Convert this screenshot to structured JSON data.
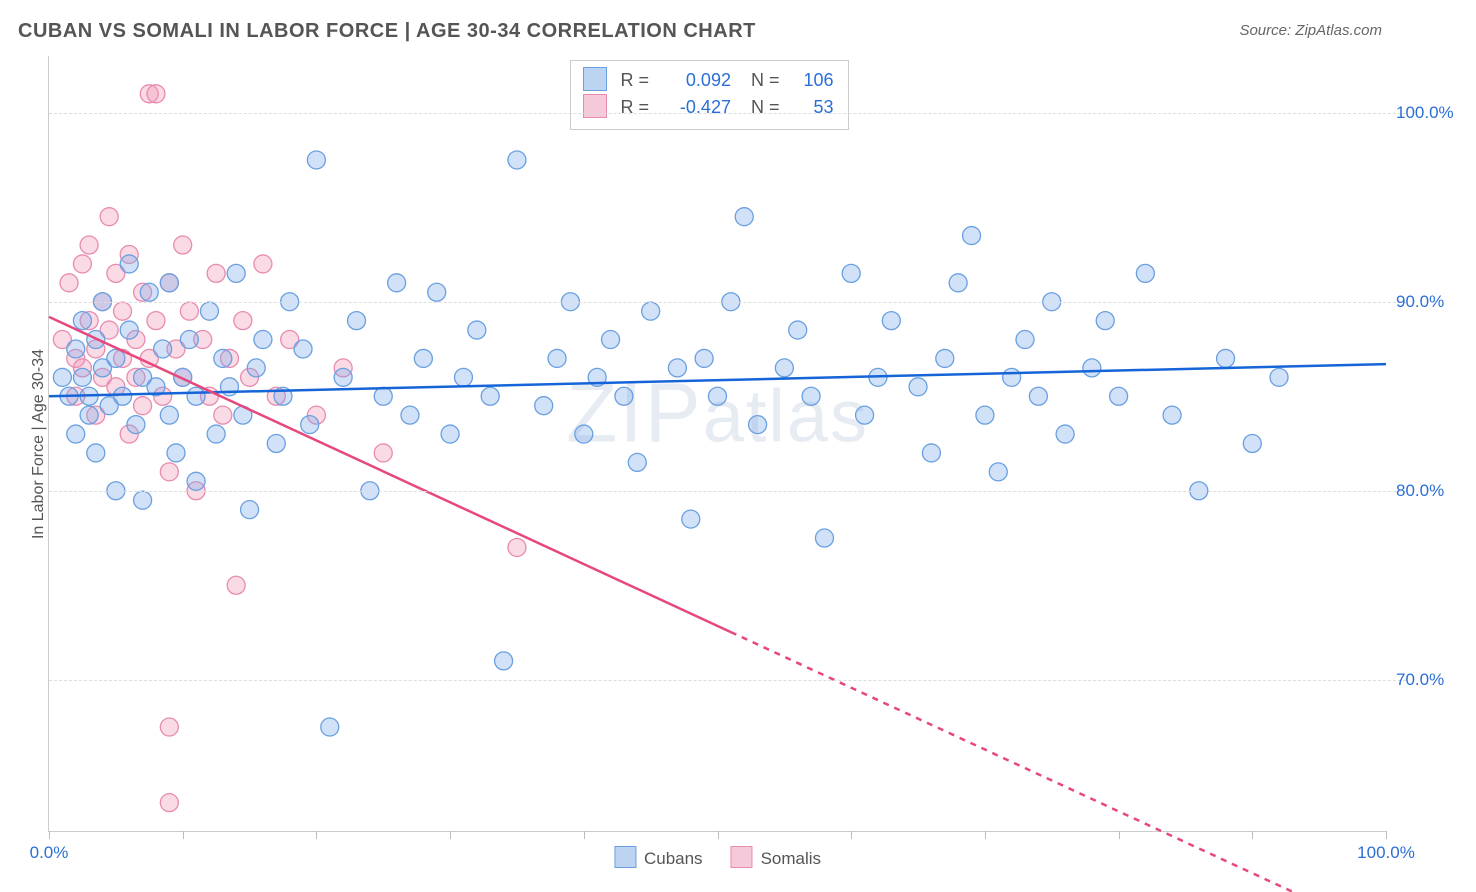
{
  "title": "CUBAN VS SOMALI IN LABOR FORCE | AGE 30-34 CORRELATION CHART",
  "source": "Source: ZipAtlas.com",
  "ylabel": "In Labor Force | Age 30-34",
  "watermark_prefix": "ZIP",
  "watermark_suffix": "atlas",
  "chart": {
    "type": "scatter",
    "xlim": [
      0,
      100
    ],
    "ylim_visible": [
      62,
      103
    ],
    "y_gridlines": [
      70,
      80,
      90,
      100
    ],
    "y_tick_labels": [
      "70.0%",
      "80.0%",
      "90.0%",
      "100.0%"
    ],
    "x_ticks": [
      0,
      10,
      20,
      30,
      40,
      50,
      60,
      70,
      80,
      90,
      100
    ],
    "x_tick_labels": {
      "0": "0.0%",
      "100": "100.0%"
    },
    "marker_radius": 9,
    "marker_stroke_width": 1.3,
    "grid_color": "#dddddd",
    "axis_color": "#cccccc",
    "background_color": "#ffffff",
    "series": [
      {
        "name": "Cubans",
        "label": "Cubans",
        "fill": "rgba(120,170,235,0.35)",
        "stroke": "#6aa0e0",
        "swatch_fill": "#bcd4f2",
        "swatch_border": "#6aa0e0",
        "R": "0.092",
        "N": "106",
        "trend": {
          "x1": 0,
          "y1": 85.0,
          "x2": 100,
          "y2": 86.7,
          "color": "#1565d8",
          "width": 2.5,
          "dash_from_x": null
        },
        "points": [
          [
            1,
            86
          ],
          [
            1.5,
            85
          ],
          [
            2,
            87.5
          ],
          [
            2,
            83
          ],
          [
            2.5,
            86
          ],
          [
            2.5,
            89
          ],
          [
            3,
            85
          ],
          [
            3,
            84
          ],
          [
            3.5,
            88
          ],
          [
            3.5,
            82
          ],
          [
            4,
            86.5
          ],
          [
            4,
            90
          ],
          [
            4.5,
            84.5
          ],
          [
            5,
            87
          ],
          [
            5,
            80
          ],
          [
            5.5,
            85
          ],
          [
            6,
            88.5
          ],
          [
            6,
            92
          ],
          [
            6.5,
            83.5
          ],
          [
            7,
            86
          ],
          [
            7,
            79.5
          ],
          [
            7.5,
            90.5
          ],
          [
            8,
            85.5
          ],
          [
            8.5,
            87.5
          ],
          [
            9,
            84
          ],
          [
            9,
            91
          ],
          [
            9.5,
            82
          ],
          [
            10,
            86
          ],
          [
            10.5,
            88
          ],
          [
            11,
            85
          ],
          [
            11,
            80.5
          ],
          [
            12,
            89.5
          ],
          [
            12.5,
            83
          ],
          [
            13,
            87
          ],
          [
            13.5,
            85.5
          ],
          [
            14,
            91.5
          ],
          [
            14.5,
            84
          ],
          [
            15,
            79
          ],
          [
            15.5,
            86.5
          ],
          [
            16,
            88
          ],
          [
            17,
            82.5
          ],
          [
            17.5,
            85
          ],
          [
            18,
            90
          ],
          [
            19,
            87.5
          ],
          [
            19.5,
            83.5
          ],
          [
            20,
            97.5
          ],
          [
            21,
            67.5
          ],
          [
            22,
            86
          ],
          [
            23,
            89
          ],
          [
            24,
            80
          ],
          [
            25,
            85
          ],
          [
            26,
            91
          ],
          [
            27,
            84
          ],
          [
            28,
            87
          ],
          [
            29,
            90.5
          ],
          [
            30,
            83
          ],
          [
            31,
            86
          ],
          [
            32,
            88.5
          ],
          [
            33,
            85
          ],
          [
            34,
            71
          ],
          [
            35,
            97.5
          ],
          [
            37,
            84.5
          ],
          [
            38,
            87
          ],
          [
            39,
            90
          ],
          [
            40,
            83
          ],
          [
            41,
            86
          ],
          [
            42,
            88
          ],
          [
            43,
            85
          ],
          [
            44,
            81.5
          ],
          [
            45,
            89.5
          ],
          [
            47,
            86.5
          ],
          [
            48,
            78.5
          ],
          [
            49,
            87
          ],
          [
            50,
            85
          ],
          [
            51,
            90
          ],
          [
            52,
            94.5
          ],
          [
            53,
            83.5
          ],
          [
            55,
            86.5
          ],
          [
            56,
            88.5
          ],
          [
            57,
            85
          ],
          [
            58,
            77.5
          ],
          [
            60,
            91.5
          ],
          [
            61,
            84
          ],
          [
            62,
            86
          ],
          [
            63,
            89
          ],
          [
            65,
            85.5
          ],
          [
            66,
            82
          ],
          [
            67,
            87
          ],
          [
            68,
            91
          ],
          [
            69,
            93.5
          ],
          [
            70,
            84
          ],
          [
            71,
            81
          ],
          [
            72,
            86
          ],
          [
            73,
            88
          ],
          [
            74,
            85
          ],
          [
            75,
            90
          ],
          [
            76,
            83
          ],
          [
            78,
            86.5
          ],
          [
            79,
            89
          ],
          [
            80,
            85
          ],
          [
            82,
            91.5
          ],
          [
            84,
            84
          ],
          [
            86,
            80
          ],
          [
            88,
            87
          ],
          [
            90,
            82.5
          ],
          [
            92,
            86
          ]
        ]
      },
      {
        "name": "Somalis",
        "label": "Somalis",
        "fill": "rgba(240,150,180,0.35)",
        "stroke": "#e88bb0",
        "swatch_fill": "#f5c9d9",
        "swatch_border": "#e88bb0",
        "R": "-0.427",
        "N": "53",
        "trend": {
          "x1": 0,
          "y1": 89.2,
          "x2": 100,
          "y2": 56.5,
          "color": "#e6487c",
          "width": 2.5,
          "dash_from_x": 51
        },
        "points": [
          [
            1,
            88
          ],
          [
            1.5,
            91
          ],
          [
            2,
            87
          ],
          [
            2,
            85
          ],
          [
            2.5,
            92
          ],
          [
            2.5,
            86.5
          ],
          [
            3,
            89
          ],
          [
            3,
            93
          ],
          [
            3.5,
            87.5
          ],
          [
            3.5,
            84
          ],
          [
            4,
            90
          ],
          [
            4,
            86
          ],
          [
            4.5,
            88.5
          ],
          [
            4.5,
            94.5
          ],
          [
            5,
            85.5
          ],
          [
            5,
            91.5
          ],
          [
            5.5,
            87
          ],
          [
            5.5,
            89.5
          ],
          [
            6,
            83
          ],
          [
            6,
            92.5
          ],
          [
            6.5,
            86
          ],
          [
            6.5,
            88
          ],
          [
            7,
            90.5
          ],
          [
            7,
            84.5
          ],
          [
            7.5,
            101
          ],
          [
            7.5,
            87
          ],
          [
            8,
            89
          ],
          [
            8,
            101
          ],
          [
            8.5,
            85
          ],
          [
            9,
            91
          ],
          [
            9,
            81
          ],
          [
            9.5,
            87.5
          ],
          [
            10,
            93
          ],
          [
            10,
            86
          ],
          [
            10.5,
            89.5
          ],
          [
            11,
            80
          ],
          [
            11.5,
            88
          ],
          [
            12,
            85
          ],
          [
            12.5,
            91.5
          ],
          [
            13,
            84
          ],
          [
            13.5,
            87
          ],
          [
            14,
            75
          ],
          [
            14.5,
            89
          ],
          [
            15,
            86
          ],
          [
            16,
            92
          ],
          [
            17,
            85
          ],
          [
            18,
            88
          ],
          [
            20,
            84
          ],
          [
            22,
            86.5
          ],
          [
            25,
            82
          ],
          [
            9,
            67.5
          ],
          [
            9,
            63.5
          ],
          [
            35,
            77
          ]
        ]
      }
    ]
  },
  "bottom_legend": [
    "Cubans",
    "Somalis"
  ],
  "corr_legend_headers": {
    "R": "R =",
    "N": "N ="
  }
}
